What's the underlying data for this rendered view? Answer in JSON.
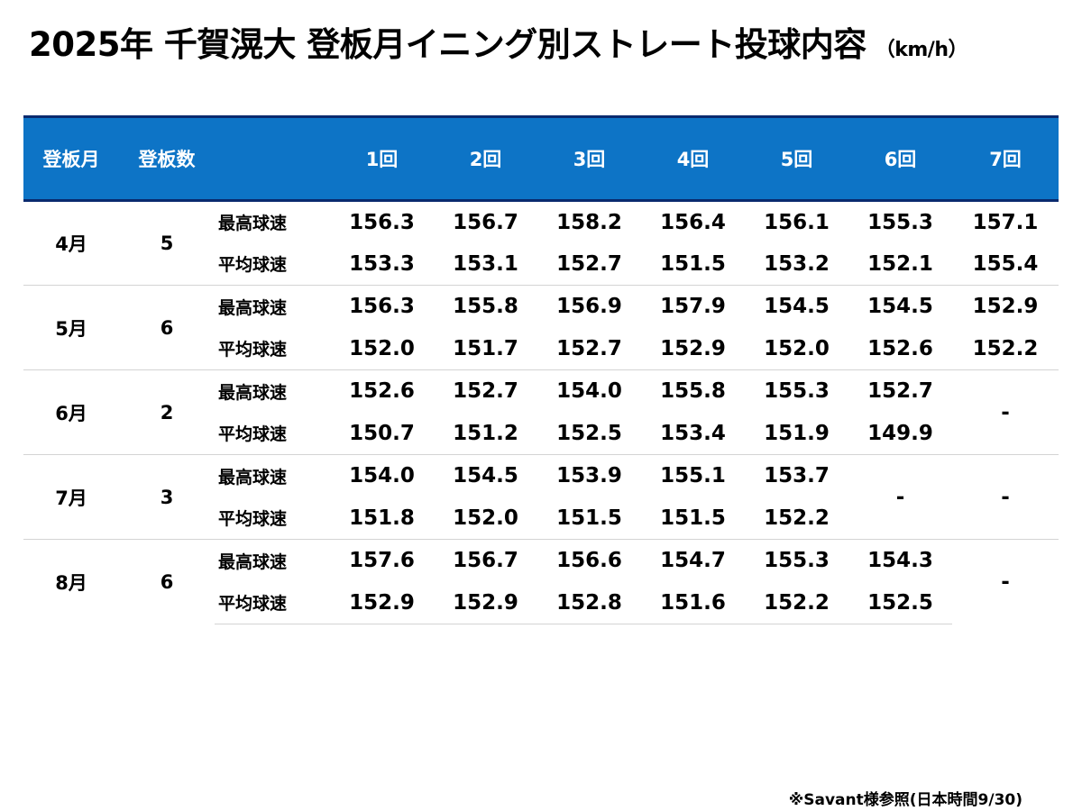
{
  "title": "2025年 千賀滉大 登板月イニング別ストレート投球内容",
  "unit": "（km/h）",
  "source_note": "※Savant様参照(日本時間9/30)",
  "colors": {
    "header_bg": "#0d74c6",
    "header_border": "#0a2a6e",
    "header_text": "#ffffff",
    "row_divider": "#d4d4d4"
  },
  "chart_data": {
    "type": "table",
    "headers": {
      "month": "登板月",
      "count": "登板数",
      "metric": "",
      "innings": [
        "1回",
        "2回",
        "3回",
        "4回",
        "5回",
        "6回",
        "7回"
      ]
    },
    "metric_labels": {
      "max": "最高球速",
      "avg": "平均球速"
    },
    "rows": [
      {
        "month": "4月",
        "count": "5",
        "max": [
          "156.3",
          "156.7",
          "158.2",
          "156.4",
          "156.1",
          "155.3",
          "157.1"
        ],
        "avg": [
          "153.3",
          "153.1",
          "152.7",
          "151.5",
          "153.2",
          "152.1",
          "155.4"
        ]
      },
      {
        "month": "5月",
        "count": "6",
        "max": [
          "156.3",
          "155.8",
          "156.9",
          "157.9",
          "154.5",
          "154.5",
          "152.9"
        ],
        "avg": [
          "152.0",
          "151.7",
          "152.7",
          "152.9",
          "152.0",
          "152.6",
          "152.2"
        ]
      },
      {
        "month": "6月",
        "count": "2",
        "max": [
          "152.6",
          "152.7",
          "154.0",
          "155.8",
          "155.3",
          "152.7",
          "-"
        ],
        "avg": [
          "150.7",
          "151.2",
          "152.5",
          "153.4",
          "151.9",
          "149.9",
          "-"
        ]
      },
      {
        "month": "7月",
        "count": "3",
        "max": [
          "154.0",
          "154.5",
          "153.9",
          "155.1",
          "153.7",
          "-",
          "-"
        ],
        "avg": [
          "151.8",
          "152.0",
          "151.5",
          "151.5",
          "152.2",
          "-",
          "-"
        ]
      },
      {
        "month": "8月",
        "count": "6",
        "max": [
          "157.6",
          "156.7",
          "156.6",
          "154.7",
          "155.3",
          "154.3",
          "-"
        ],
        "avg": [
          "152.9",
          "152.9",
          "152.8",
          "151.6",
          "152.2",
          "152.5",
          "-"
        ]
      }
    ]
  }
}
